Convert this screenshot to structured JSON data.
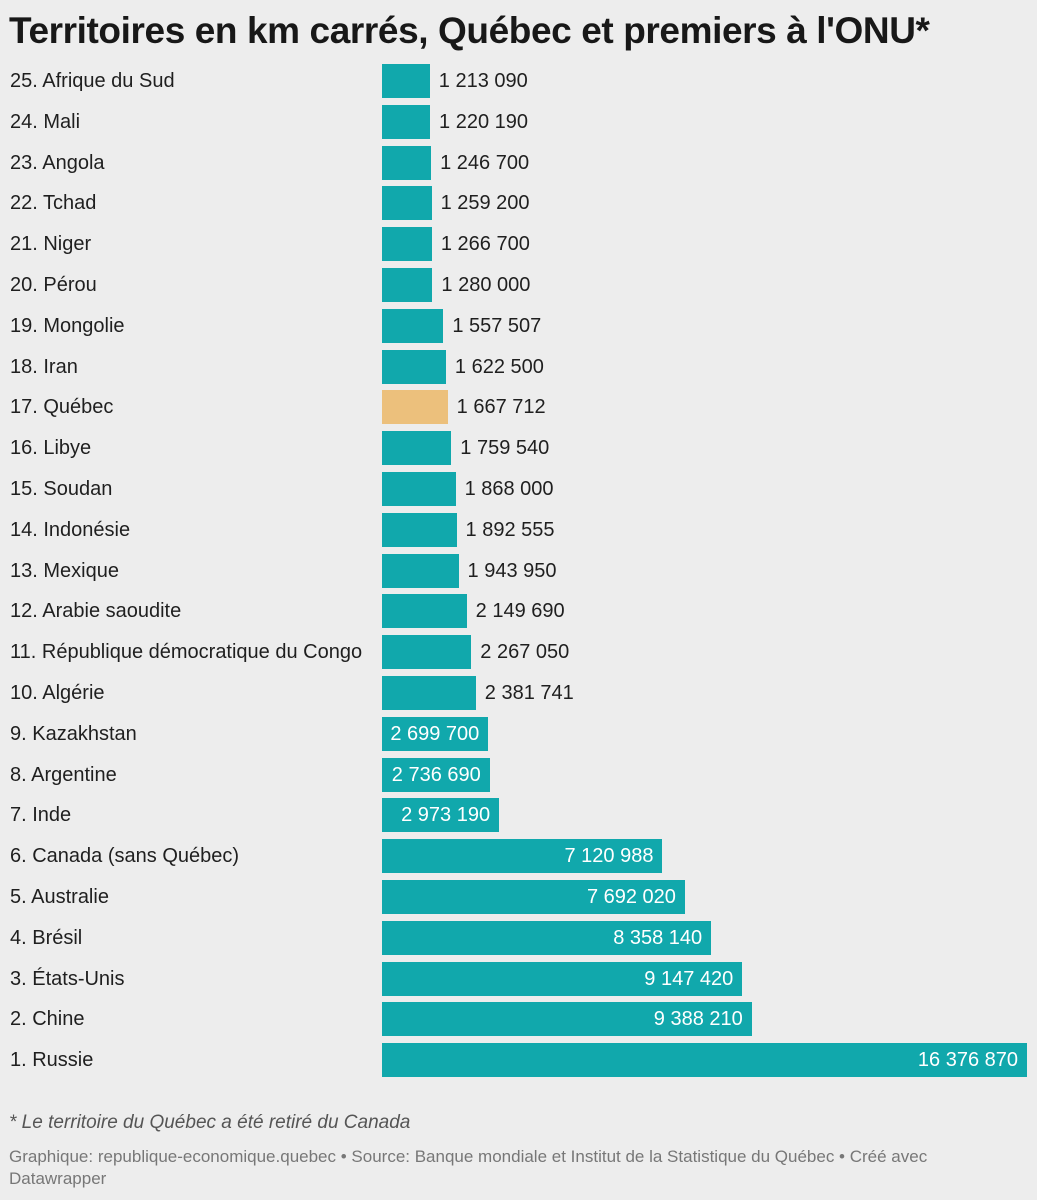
{
  "title": "Territoires en km carrés, Québec et premiers à l'ONU*",
  "note": "* Le territoire du Québec a été retiré du Canada",
  "footer": "Graphique: republique-economique.quebec • Source: Banque mondiale et Institut de la Statistique du Québec • Créé avec Datawrapper",
  "colors": {
    "bar": "#11a8ac",
    "highlight": "#ecc07c",
    "background": "#ededed"
  },
  "chart_data": {
    "type": "bar",
    "orientation": "horizontal",
    "title": "Territoires en km carrés, Québec et premiers à l'ONU*",
    "xlabel": "",
    "ylabel": "",
    "xlim": [
      0,
      16376870
    ],
    "grid": false,
    "legend": "none",
    "highlight": "17. Québec",
    "categories": [
      "25. Afrique du Sud",
      "24. Mali",
      "23. Angola",
      "22. Tchad",
      "21. Niger",
      "20. Pérou",
      "19. Mongolie",
      "18. Iran",
      "17. Québec",
      "16. Libye",
      "15. Soudan",
      "14. Indonésie",
      "13. Mexique",
      "12. Arabie saoudite",
      "11. République démocratique du Congo",
      "10. Algérie",
      "9. Kazakhstan",
      "8. Argentine",
      "7. Inde",
      "6. Canada (sans Québec)",
      "5. Australie",
      "4. Brésil",
      "3. États-Unis",
      "2. Chine",
      "1. Russie"
    ],
    "values": [
      1213090,
      1220190,
      1246700,
      1259200,
      1266700,
      1280000,
      1557507,
      1622500,
      1667712,
      1759540,
      1868000,
      1892555,
      1943950,
      2149690,
      2267050,
      2381741,
      2699700,
      2736690,
      2973190,
      7120988,
      7692020,
      8358140,
      9147420,
      9388210,
      16376870
    ],
    "value_labels": [
      "1 213 090",
      "1 220 190",
      "1 246 700",
      "1 259 200",
      "1 266 700",
      "1 280 000",
      "1 557 507",
      "1 622 500",
      "1 667 712",
      "1 759 540",
      "1 868 000",
      "1 892 555",
      "1 943 950",
      "2 149 690",
      "2 267 050",
      "2 381 741",
      "2 699 700",
      "2 736 690",
      "2 973 190",
      "7 120 988",
      "7 692 020",
      "8 358 140",
      "9 147 420",
      "9 388 210",
      "16 376 870"
    ]
  }
}
